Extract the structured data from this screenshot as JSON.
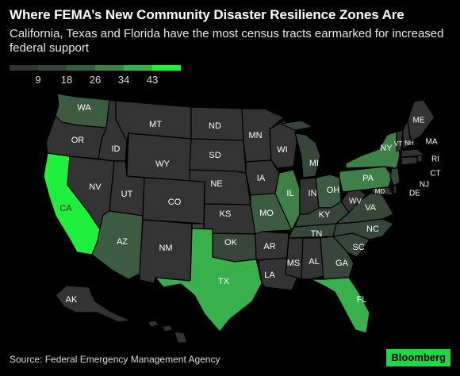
{
  "header": {
    "title": "Where FEMA’s New Community Disaster Resilience Zones Are",
    "subtitle": "California, Texas and Florida have the most census tracts earmarked for increased federal support"
  },
  "legend": {
    "ticks": [
      "9",
      "18",
      "26",
      "34",
      "43"
    ],
    "colors": [
      "#333333",
      "#37453a",
      "#3b5c41",
      "#3f7f48",
      "#38b14c",
      "#1ef03b"
    ]
  },
  "footer": {
    "source": "Source: Federal Emergency Management Agency",
    "brand": "Bloomberg"
  },
  "states": [
    {
      "id": "WA",
      "label": "WA",
      "level": 2
    },
    {
      "id": "OR",
      "label": "OR",
      "level": 0
    },
    {
      "id": "CA",
      "label": "CA",
      "level": 5
    },
    {
      "id": "NV",
      "label": "NV",
      "level": 0
    },
    {
      "id": "ID",
      "label": "ID",
      "level": 0
    },
    {
      "id": "MT",
      "label": "MT",
      "level": 0
    },
    {
      "id": "WY",
      "label": "WY",
      "level": 0
    },
    {
      "id": "UT",
      "label": "UT",
      "level": 0
    },
    {
      "id": "AZ",
      "label": "AZ",
      "level": 2
    },
    {
      "id": "CO",
      "label": "CO",
      "level": 0
    },
    {
      "id": "NM",
      "label": "NM",
      "level": 0
    },
    {
      "id": "ND",
      "label": "ND",
      "level": 0
    },
    {
      "id": "SD",
      "label": "SD",
      "level": 0
    },
    {
      "id": "NE",
      "label": "NE",
      "level": 0
    },
    {
      "id": "KS",
      "label": "KS",
      "level": 0
    },
    {
      "id": "OK",
      "label": "OK",
      "level": 1
    },
    {
      "id": "TX",
      "label": "TX",
      "level": 4
    },
    {
      "id": "MN",
      "label": "MN",
      "level": 0
    },
    {
      "id": "IA",
      "label": "IA",
      "level": 0
    },
    {
      "id": "MO",
      "label": "MO",
      "level": 2
    },
    {
      "id": "AR",
      "label": "AR",
      "level": 0
    },
    {
      "id": "LA",
      "label": "LA",
      "level": 0
    },
    {
      "id": "WI",
      "label": "WI",
      "level": 0
    },
    {
      "id": "IL",
      "label": "IL",
      "level": 3
    },
    {
      "id": "MI",
      "label": "MI",
      "level": 1
    },
    {
      "id": "IN",
      "label": "IN",
      "level": 0
    },
    {
      "id": "OH",
      "label": "OH",
      "level": 2
    },
    {
      "id": "KY",
      "label": "KY",
      "level": 1
    },
    {
      "id": "TN",
      "label": "TN",
      "level": 1
    },
    {
      "id": "MS",
      "label": "MS",
      "level": 0
    },
    {
      "id": "AL",
      "label": "AL",
      "level": 0
    },
    {
      "id": "GA",
      "label": "GA",
      "level": 1
    },
    {
      "id": "FL",
      "label": "FL",
      "level": 4
    },
    {
      "id": "SC",
      "label": "SC",
      "level": 1
    },
    {
      "id": "NC",
      "label": "NC",
      "level": 1
    },
    {
      "id": "VA",
      "label": "VA",
      "level": 1
    },
    {
      "id": "WV",
      "label": "WV",
      "level": 0
    },
    {
      "id": "PA",
      "label": "PA",
      "level": 3
    },
    {
      "id": "NY",
      "label": "NY",
      "level": 3
    },
    {
      "id": "VT",
      "label": "VT",
      "level": 0
    },
    {
      "id": "NH",
      "label": "NH",
      "level": 0
    },
    {
      "id": "ME",
      "label": "ME",
      "level": 0
    },
    {
      "id": "MA",
      "label": "MA",
      "level": 0
    },
    {
      "id": "RI",
      "label": "RI",
      "level": 0
    },
    {
      "id": "CT",
      "label": "CT",
      "level": 0
    },
    {
      "id": "NJ",
      "label": "NJ",
      "level": 1
    },
    {
      "id": "DE",
      "label": "DE",
      "level": 0
    },
    {
      "id": "MD",
      "label": "MD",
      "level": 0
    },
    {
      "id": "AK",
      "label": "AK",
      "level": 0
    },
    {
      "id": "HI",
      "label": "",
      "level": 0
    }
  ]
}
